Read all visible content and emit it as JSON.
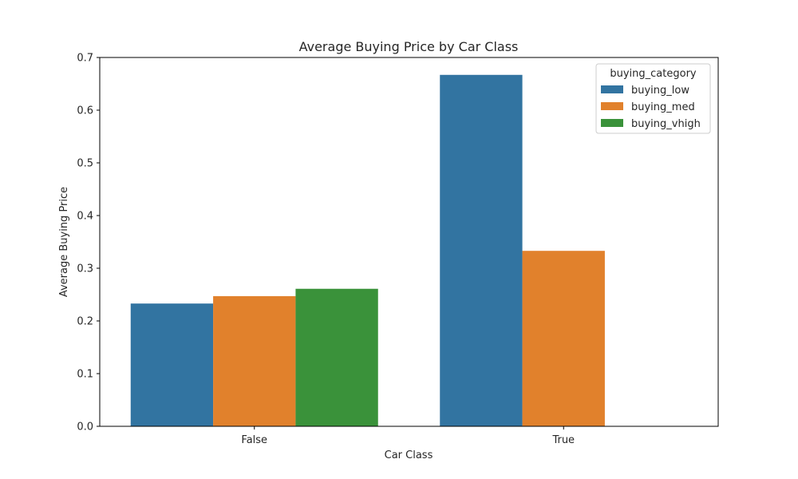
{
  "chart_data": {
    "type": "bar",
    "title": "Average Buying Price by Car Class",
    "xlabel": "Car Class",
    "ylabel": "Average Buying Price",
    "categories": [
      "False",
      "True"
    ],
    "ylim": [
      0,
      0.7
    ],
    "yticks": [
      "0.0",
      "0.1",
      "0.2",
      "0.3",
      "0.4",
      "0.5",
      "0.6",
      "0.7"
    ],
    "grid": false,
    "legend": {
      "title": "buying_category",
      "placement": "top-right"
    },
    "series": [
      {
        "name": "buying_low",
        "color": "#3274a1",
        "values": [
          0.233,
          0.667
        ]
      },
      {
        "name": "buying_med",
        "color": "#e1812c",
        "values": [
          0.247,
          0.333
        ]
      },
      {
        "name": "buying_vhigh",
        "color": "#3a923a",
        "values": [
          0.261,
          null
        ]
      }
    ]
  }
}
